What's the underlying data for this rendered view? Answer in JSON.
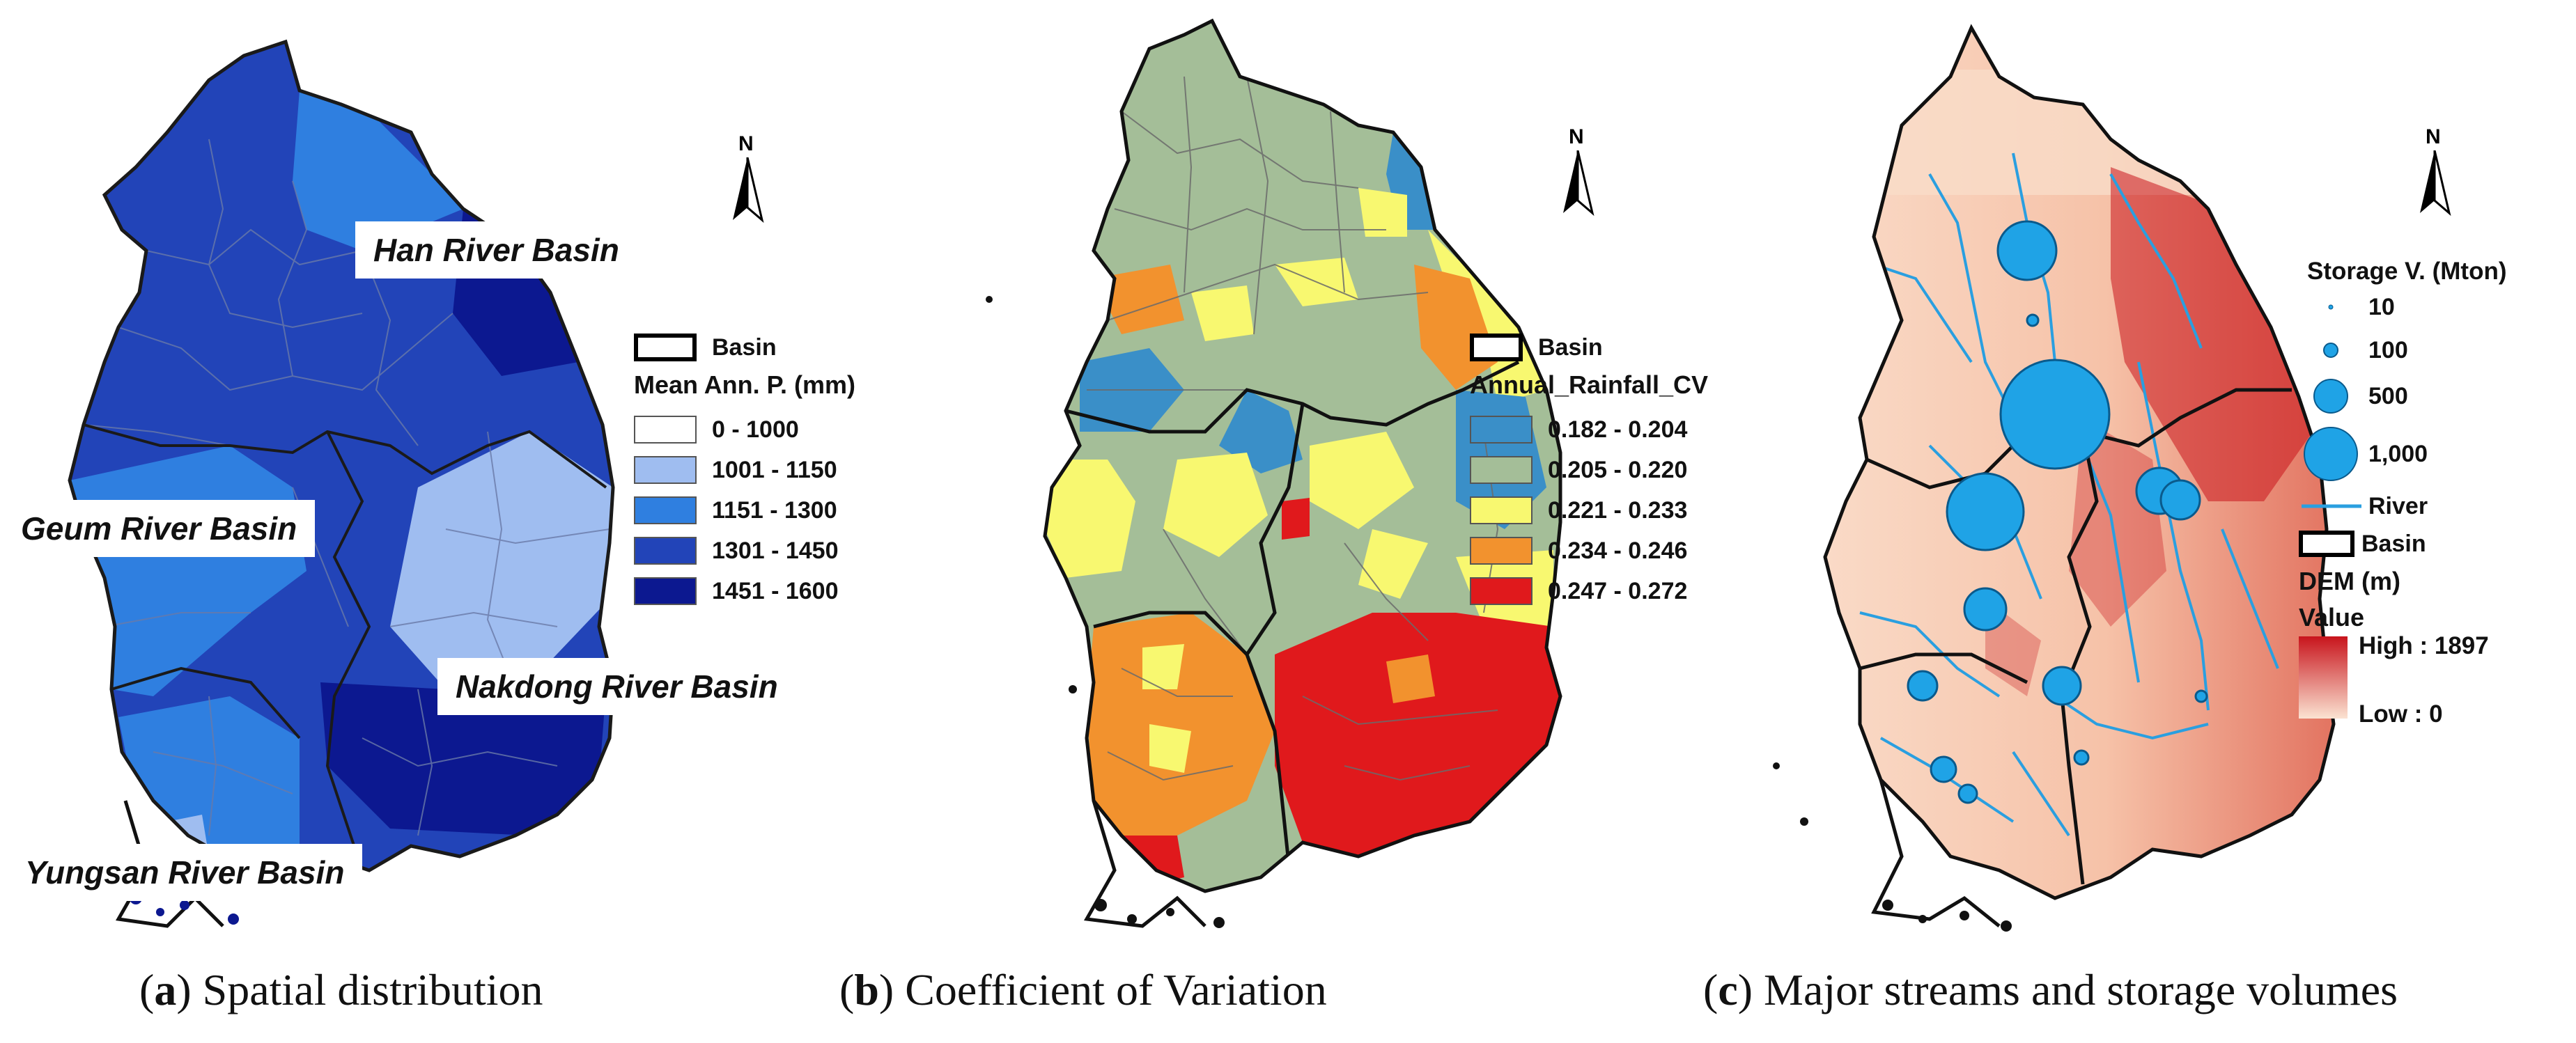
{
  "north_label": "N",
  "panel_a": {
    "caption_letter": "a",
    "caption_text": ") Spatial distribution",
    "basin_labels": [
      "Han River  Basin",
      "Geum River Basin",
      "Nakdong River Basin",
      "Yungsan River Basin"
    ],
    "legend": {
      "basin": "Basin",
      "title": "Mean Ann. P. (mm)",
      "items": [
        {
          "label": "0 - 1000",
          "color": "#ffffff"
        },
        {
          "label": "1001 - 1150",
          "color": "#9fbdf0"
        },
        {
          "label": "1151 - 1300",
          "color": "#2f7fe0"
        },
        {
          "label": "1301 - 1450",
          "color": "#2244b8"
        },
        {
          "label": "1451 - 1600",
          "color": "#0c1890"
        }
      ]
    }
  },
  "panel_b": {
    "caption_letter": "b",
    "caption_text": ") Coefficient of Variation",
    "legend": {
      "basin": "Basin",
      "title": "Annual_Rainfall_CV",
      "items": [
        {
          "label": "0.182 - 0.204",
          "color": "#3a8fc8"
        },
        {
          "label": "0.205 - 0.220",
          "color": "#a4be98"
        },
        {
          "label": "0.221 - 0.233",
          "color": "#f8f870"
        },
        {
          "label": "0.234 - 0.246",
          "color": "#f2922e"
        },
        {
          "label": "0.247 - 0.272",
          "color": "#e0191c"
        }
      ]
    }
  },
  "panel_c": {
    "caption_letter": "c",
    "caption_text": ") Major streams and storage volumes",
    "legend": {
      "storage_title": "Storage V. (Mton)",
      "storage_items": [
        "10",
        "100",
        "500",
        "1,000"
      ],
      "river": "River",
      "basin": "Basin",
      "dem_title": "DEM (m)",
      "value_label": "Value",
      "high": "High : 1897",
      "low": "Low : 0"
    },
    "colors": {
      "reservoir": "#1fa3e6",
      "river": "#2a9fe0",
      "dem_high": "#c8141c",
      "dem_low": "#fbe3d2"
    }
  }
}
